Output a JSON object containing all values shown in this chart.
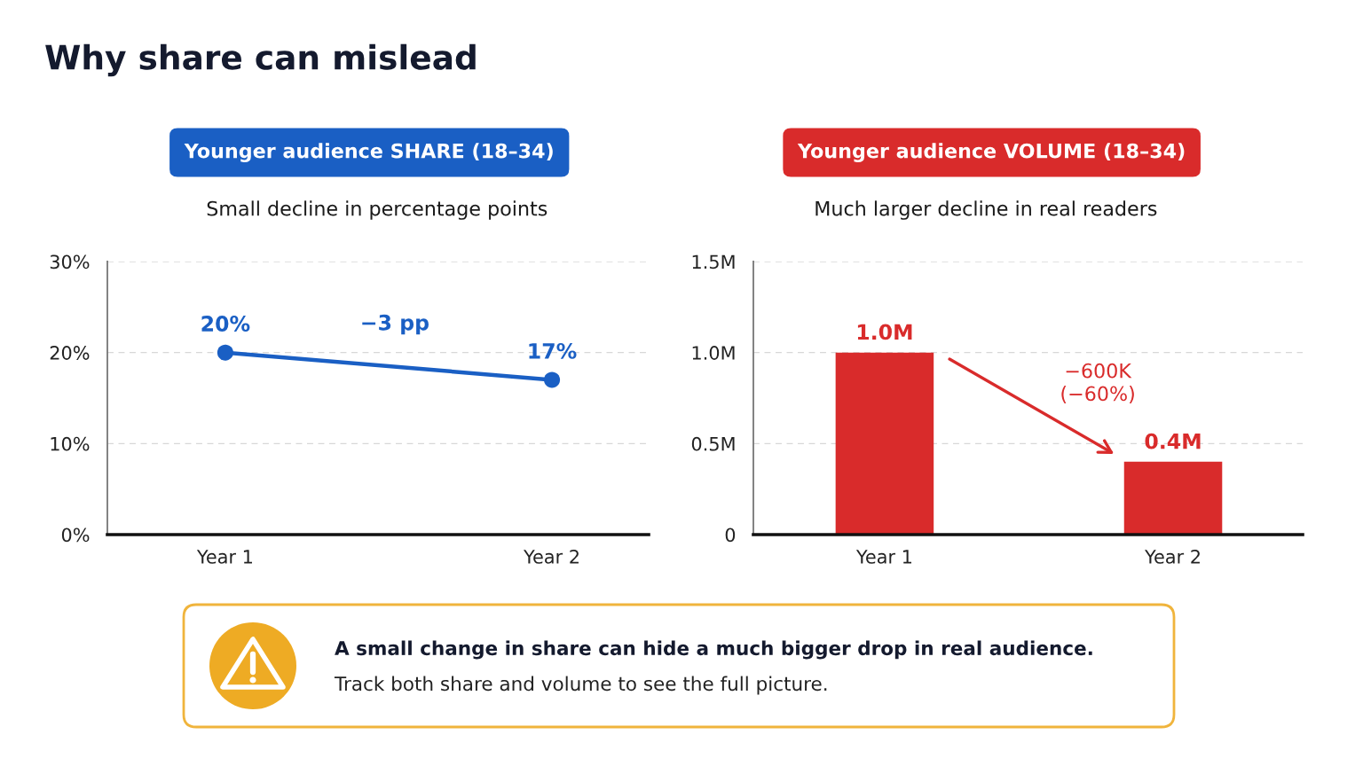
{
  "chart_data": [
    {
      "type": "other",
      "title": "Why share can mislead"
    },
    {
      "type": "line",
      "title": "Younger audience SHARE (18–34)",
      "subtitle": "Small decline in percentage points",
      "categories": [
        "Year 1",
        "Year 2"
      ],
      "values": [
        20,
        17
      ],
      "color": "#1a5fc4",
      "value_labels": [
        "20%",
        "17%"
      ],
      "ylim": [
        0,
        30
      ],
      "yticks": [
        {
          "value": 0,
          "label": "0%"
        },
        {
          "value": 10,
          "label": "10%"
        },
        {
          "value": 20,
          "label": "20%"
        },
        {
          "value": 30,
          "label": "30%"
        }
      ],
      "grid": "y",
      "marker": "circle",
      "line_style": "solid",
      "annotations": [
        "−3 pp"
      ]
    },
    {
      "type": "bar",
      "title": "Younger audience VOLUME (18–34)",
      "subtitle": "Much larger decline in real readers",
      "categories": [
        "Year 1",
        "Year 2"
      ],
      "values": [
        1.0,
        0.4
      ],
      "color": "#d92b2b",
      "value_labels": [
        "1.0M",
        "0.4M"
      ],
      "ylim": [
        0,
        1.5
      ],
      "yticks": [
        0,
        {
          "value": 0.5,
          "label": "0.5M"
        },
        {
          "value": 1.0,
          "label": "1.0M"
        },
        {
          "value": 1.5,
          "label": "1.5M"
        }
      ],
      "grid": "y",
      "annotations": [
        "−600K\n(−60%)"
      ]
    },
    {
      "type": "other",
      "title": "A small change in share can hide a much bigger drop in real audience.",
      "subtitle": "Track both share and volume to see the full picture."
    }
  ]
}
